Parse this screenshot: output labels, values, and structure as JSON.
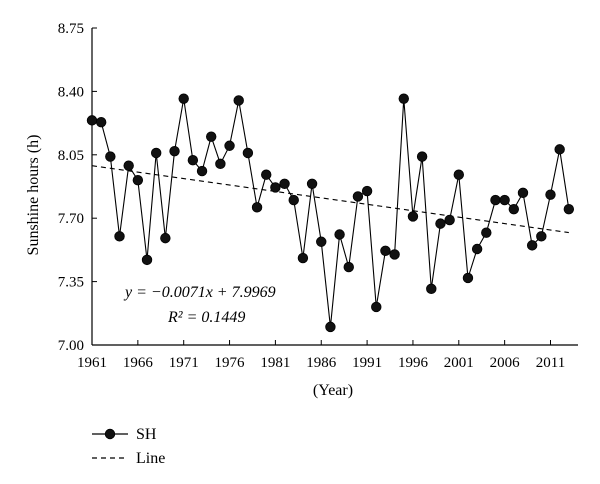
{
  "chart_data": {
    "type": "line",
    "title": "",
    "xlabel": "(Year)",
    "ylabel": "Sunshine hours (h)",
    "xlim": [
      1961,
      2014
    ],
    "ylim": [
      7.0,
      8.75
    ],
    "xticks": [
      1961,
      1966,
      1971,
      1976,
      1981,
      1986,
      1991,
      1996,
      2001,
      2006,
      2011
    ],
    "yticks": [
      "7.00",
      "7.35",
      "7.70",
      "8.05",
      "8.40",
      "8.75"
    ],
    "grid": false,
    "legend_position": "bottom-left",
    "series": [
      {
        "name": "SH",
        "style": "solid line with black circle markers",
        "x": [
          1961,
          1962,
          1963,
          1964,
          1965,
          1966,
          1967,
          1968,
          1969,
          1970,
          1971,
          1972,
          1973,
          1974,
          1975,
          1976,
          1977,
          1978,
          1979,
          1980,
          1981,
          1982,
          1983,
          1984,
          1985,
          1986,
          1987,
          1988,
          1989,
          1990,
          1991,
          1992,
          1993,
          1994,
          1995,
          1996,
          1997,
          1998,
          1999,
          2000,
          2001,
          2002,
          2003,
          2004,
          2005,
          2006,
          2007,
          2008,
          2009,
          2010,
          2011,
          2012,
          2013
        ],
        "values": [
          8.24,
          8.23,
          8.04,
          7.6,
          7.99,
          7.91,
          7.47,
          8.06,
          7.59,
          8.07,
          8.36,
          8.02,
          7.96,
          8.15,
          8.0,
          8.1,
          8.35,
          8.06,
          7.76,
          7.94,
          7.87,
          7.89,
          7.8,
          7.48,
          7.89,
          7.57,
          7.1,
          7.61,
          7.43,
          7.82,
          7.85,
          7.21,
          7.52,
          7.5,
          8.36,
          7.71,
          8.04,
          7.31,
          7.67,
          7.69,
          7.94,
          7.37,
          7.53,
          7.62,
          7.8,
          7.8,
          7.75,
          7.84,
          7.55,
          7.6,
          7.83,
          8.08,
          7.75
        ]
      },
      {
        "name": "Line",
        "style": "dashed trend line",
        "x": [
          1961,
          2013
        ],
        "values": [
          7.9898,
          7.6206
        ]
      }
    ],
    "annotations": {
      "equation": "y = −0.0071x + 7.9969",
      "r_squared": "R² = 0.1449"
    }
  },
  "legend": {
    "items": [
      {
        "label": "SH",
        "marker": "circle-line"
      },
      {
        "label": "Line",
        "marker": "dashed-line"
      }
    ]
  }
}
